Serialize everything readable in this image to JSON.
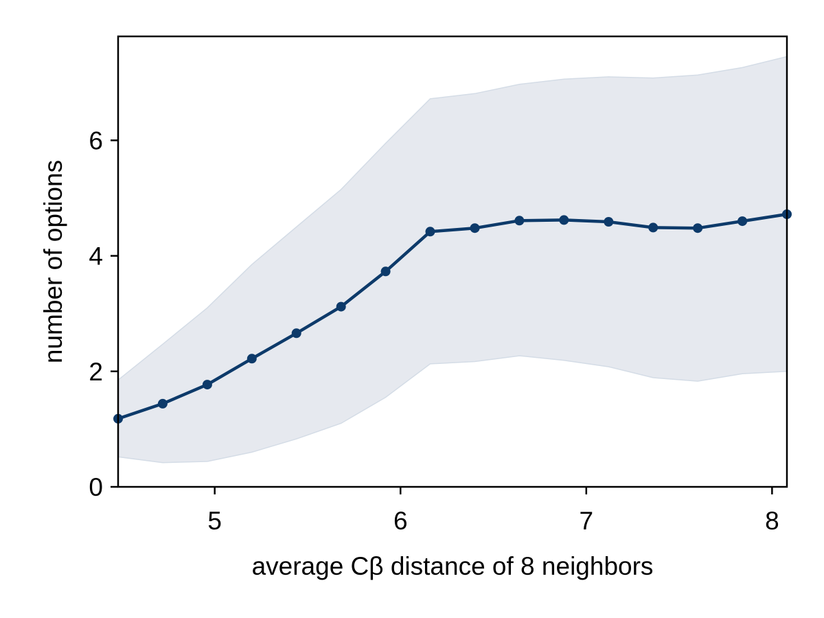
{
  "chart_data": {
    "type": "line",
    "title": "",
    "xlabel": "average Cβ distance of 8 neighbors",
    "ylabel": "number of options",
    "xlim": [
      4.48,
      8.08
    ],
    "ylim": [
      0,
      7.8
    ],
    "grid": false,
    "x_ticks": [
      5,
      6,
      7,
      8
    ],
    "x_tick_labels": [
      "5",
      "6",
      "7",
      "8"
    ],
    "y_ticks": [
      0,
      2,
      4,
      6
    ],
    "y_tick_labels": [
      "0",
      "2",
      "4",
      "6"
    ],
    "line_color": "#0d3a6a",
    "band_color": "#e6e9ef",
    "band_edge_color": "#d4dce6",
    "series": [
      {
        "x": [
          4.48,
          4.72,
          4.96,
          5.2,
          5.44,
          5.68,
          5.92,
          6.16,
          6.4,
          6.64,
          6.88,
          7.12,
          7.36,
          7.6,
          7.84,
          8.08
        ],
        "values": [
          1.18,
          1.44,
          1.77,
          2.22,
          2.66,
          3.12,
          3.73,
          4.42,
          4.48,
          4.61,
          4.62,
          4.59,
          4.49,
          4.48,
          4.6,
          4.72
        ],
        "lower": [
          0.52,
          0.42,
          0.44,
          0.6,
          0.83,
          1.1,
          1.55,
          2.13,
          2.17,
          2.27,
          2.19,
          2.08,
          1.89,
          1.83,
          1.96,
          2.0
        ],
        "upper": [
          1.85,
          2.47,
          3.1,
          3.85,
          4.5,
          5.15,
          5.95,
          6.72,
          6.81,
          6.97,
          7.06,
          7.1,
          7.08,
          7.13,
          7.26,
          7.45
        ]
      }
    ]
  }
}
